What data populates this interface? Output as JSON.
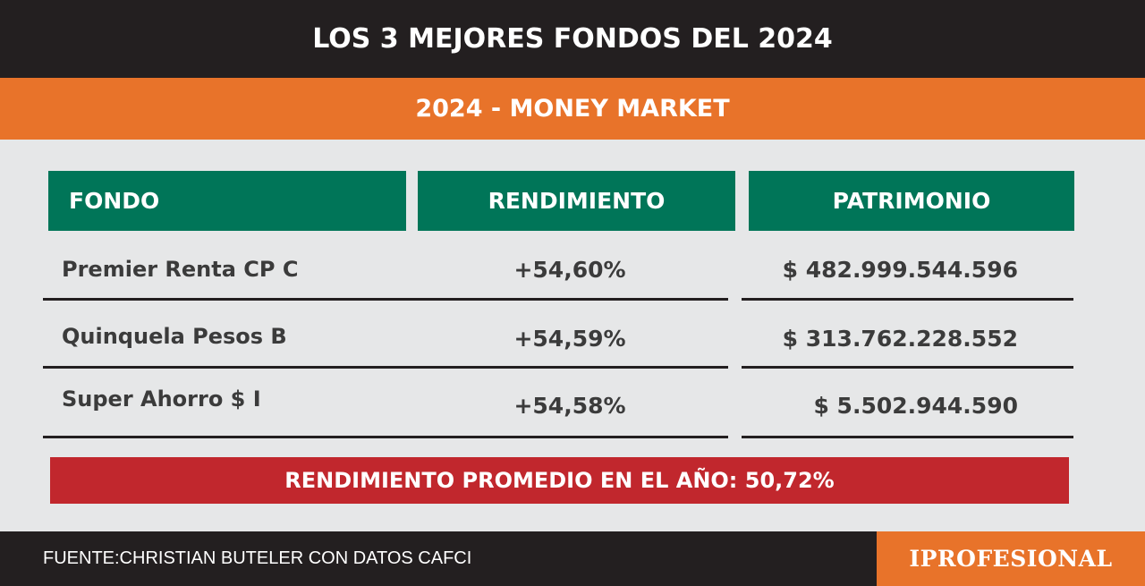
{
  "title": "LOS 3 MEJORES FONDOS DEL 2024",
  "subtitle": "2024 - MONEY MARKET",
  "chart_data": {
    "type": "table",
    "columns": [
      "FONDO",
      "RENDIMIENTO",
      "PATRIMONIO"
    ],
    "rows": [
      {
        "fondo": "Premier Renta CP  C",
        "rendimiento": "+54,60%",
        "patrimonio": "$ 482.999.544.596"
      },
      {
        "fondo": "Quinquela Pesos B",
        "rendimiento": "+54,59%",
        "patrimonio": "$ 313.762.228.552"
      },
      {
        "fondo": "Super Ahorro $ I",
        "rendimiento": "+54,58%",
        "patrimonio": "$ 5.502.944.590"
      }
    ]
  },
  "summary": "RENDIMIENTO PROMEDIO EN EL AÑO: 50,72%",
  "footer": {
    "source": "FUENTE:CHRISTIAN BUTELER CON DATOS CAFCI",
    "brand": "IPROFESIONAL"
  },
  "colors": {
    "dark": "#231f20",
    "orange": "#e8732a",
    "green": "#007558",
    "red": "#c1272d",
    "background": "#e6e7e8"
  }
}
